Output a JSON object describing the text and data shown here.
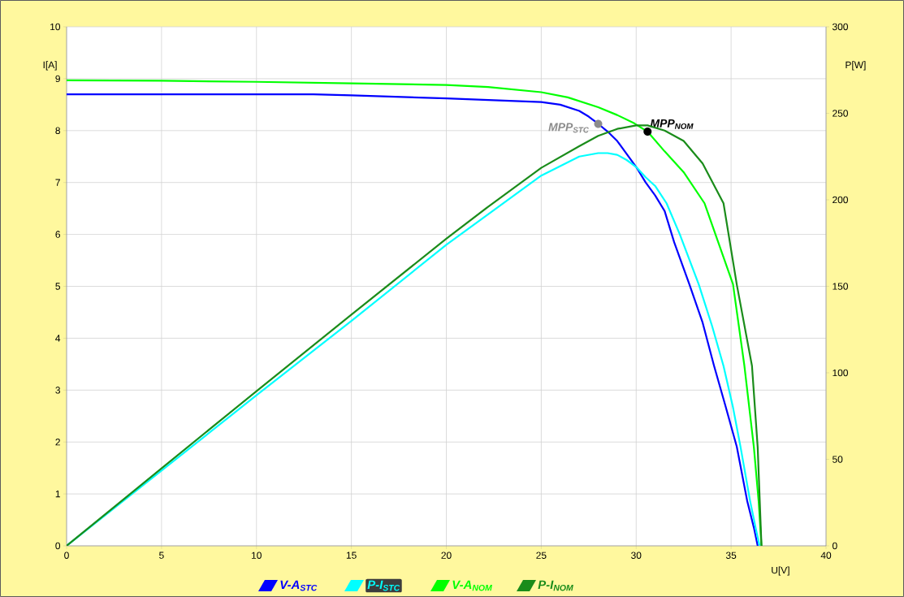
{
  "chart_data": {
    "type": "line",
    "xlabel": "U[V]",
    "ylabel": "I[A]",
    "y2label": "P[W]",
    "xlim": [
      0,
      40
    ],
    "xticks": [
      0,
      5,
      10,
      15,
      20,
      25,
      30,
      35,
      40
    ],
    "ylim": [
      0,
      10
    ],
    "yticks": [
      0,
      1,
      2,
      3,
      4,
      5,
      6,
      7,
      8,
      9,
      10
    ],
    "y2lim": [
      0,
      300
    ],
    "y2ticks": [
      0,
      50,
      100,
      150,
      200,
      250,
      300
    ],
    "grid": true,
    "legend": "bottom",
    "series": [
      {
        "name": "V-A$_{STC}$",
        "color": "#0000ff",
        "x": [
          0,
          5,
          10,
          13,
          15,
          20,
          25,
          26,
          27,
          27.5,
          28,
          28.5,
          29,
          29.5,
          30,
          30.5,
          31,
          31.5,
          32,
          32.8,
          33.5,
          34.1,
          34.7,
          35.3,
          35.85,
          36.2,
          36.4
        ],
        "values": [
          8.7,
          8.7,
          8.7,
          8.7,
          8.68,
          8.62,
          8.55,
          8.5,
          8.38,
          8.27,
          8.13,
          7.98,
          7.8,
          7.55,
          7.3,
          7.0,
          6.75,
          6.45,
          5.85,
          5.04,
          4.3,
          3.47,
          2.7,
          1.91,
          0.86,
          0.35,
          0
        ]
      },
      {
        "name": "P-I$_{STC}$",
        "color": "#00ffff",
        "axis": "y2",
        "x": [
          0,
          5,
          10,
          15,
          20,
          25,
          27,
          28,
          28.5,
          29,
          29.5,
          30,
          30.5,
          31,
          31.6,
          32.3,
          33.3,
          34,
          34.6,
          35.1,
          35.5,
          36,
          36.3,
          36.5
        ],
        "values": [
          0,
          43.5,
          87,
          130,
          174,
          214,
          225,
          227,
          227,
          226,
          223,
          219,
          213,
          208,
          198,
          180,
          151,
          127,
          104,
          80,
          57,
          26,
          10,
          0
        ]
      },
      {
        "name": "V-A$_{NOM}$",
        "color": "#00ff00",
        "x": [
          0,
          5,
          10,
          15,
          20,
          22.2,
          25,
          26.4,
          28,
          29,
          29.9,
          30.6,
          31.5,
          32.5,
          33.6,
          35.1,
          35.7,
          36.2,
          36.45,
          36.6
        ],
        "values": [
          8.97,
          8.96,
          8.94,
          8.91,
          8.88,
          8.84,
          8.74,
          8.64,
          8.45,
          8.3,
          8.14,
          7.98,
          7.6,
          7.2,
          6.6,
          5.04,
          3.47,
          1.9,
          0.86,
          0
        ]
      },
      {
        "name": "P-I$_{NOM}$",
        "color": "#1a8c1a",
        "axis": "y2",
        "x": [
          0,
          5,
          10,
          15,
          20,
          22.2,
          25,
          27,
          28,
          29,
          30,
          30.6,
          31.5,
          32.5,
          33.5,
          34.6,
          35.3,
          36.1,
          36.4,
          36.6
        ],
        "values": [
          0,
          44.8,
          89.4,
          133.6,
          177.5,
          196,
          218.5,
          231,
          237,
          241,
          243,
          243,
          240,
          234,
          221,
          198,
          151,
          104,
          57,
          0
        ]
      },
      {
        "type": "scatter",
        "marker": "circle",
        "color": "#8c8c8c",
        "x": [
          28.0
        ],
        "values": [
          8.13
        ]
      },
      {
        "type": "scatter",
        "marker": "circle",
        "color": "#000000",
        "x": [
          30.6
        ],
        "values": [
          7.98
        ]
      }
    ],
    "annotations": [
      {
        "text": "MPP$_{STC}$",
        "x": 28.0,
        "y": 8.13
      },
      {
        "text": "MPP$_{NOM}$",
        "x": 30.6,
        "y": 7.98
      }
    ]
  }
}
